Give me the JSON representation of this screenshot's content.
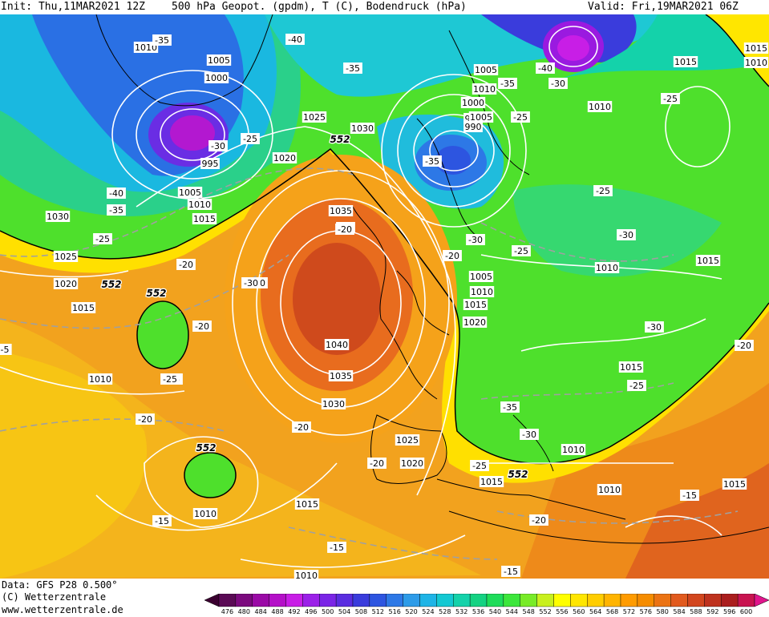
{
  "header": {
    "init": "Init: Thu,11MAR2021 12Z",
    "product": "500 hPa Geopot. (gpdm), T (C), Bodendruck (hPa)",
    "valid": "Valid: Fri,19MAR2021 06Z"
  },
  "footer": {
    "data": "Data: GFS P28 0.500°",
    "copyright": "(C) Wetterzentrale",
    "url": "www.wetterzentrale.de"
  },
  "colorbar": {
    "ticks": [
      "476",
      "480",
      "484",
      "488",
      "492",
      "496",
      "500",
      "504",
      "508",
      "512",
      "516",
      "520",
      "524",
      "528",
      "532",
      "536",
      "540",
      "544",
      "548",
      "552",
      "556",
      "560",
      "564",
      "568",
      "572",
      "576",
      "580",
      "584",
      "588",
      "592",
      "596",
      "600"
    ],
    "colors": [
      "#5a0a55",
      "#7b0a7e",
      "#9a0aa6",
      "#b410c8",
      "#c81ee6",
      "#9b20e8",
      "#7a25e6",
      "#5a2de0",
      "#3a3cdc",
      "#2d55e0",
      "#2d78e6",
      "#2d9be8",
      "#1eb4e6",
      "#14c8d2",
      "#14d2aa",
      "#14d282",
      "#1edc5a",
      "#3ce63c",
      "#78eb28",
      "#c8f01e",
      "#ffff00",
      "#ffe600",
      "#ffcd00",
      "#ffb400",
      "#ff9b00",
      "#f58c00",
      "#eb7314",
      "#e15a1e",
      "#d2461e",
      "#be321e",
      "#aa1e1e",
      "#c81450"
    ]
  },
  "map": {
    "geopot_label": "552",
    "pressure_labels": [
      "1010",
      "1005",
      "1000",
      "995",
      "1005",
      "1010",
      "1015",
      "1030",
      "1025",
      "1020",
      "1015",
      "1010",
      "1025",
      "1030",
      "1020",
      "1035",
      "1040",
      "1035",
      "1030",
      "1025",
      "1020",
      "1015",
      "1015",
      "1010",
      "1010",
      "1005",
      "1000",
      "995",
      "990",
      "1010",
      "1015",
      "1020",
      "1005",
      "1010",
      "1015",
      "1015",
      "1010",
      "1010",
      "1015",
      "1015",
      "1010",
      "1010",
      "1005",
      "1015",
      "1010"
    ],
    "temp_labels": [
      "-35",
      "-40",
      "-35",
      "-30",
      "-25",
      "-40",
      "-35",
      "-25",
      "-20",
      "-20",
      "-20",
      "-25",
      "-20",
      "-20",
      "-20",
      "-15",
      "-15",
      "-15",
      "-20",
      "-25",
      "-30",
      "-35",
      "-30",
      "-35",
      "-25",
      "-40",
      "-30",
      "-35",
      "-25",
      "-25",
      "-30",
      "-20",
      "-20",
      "-30",
      "-25",
      "-25",
      "-30",
      "-35",
      "-15",
      "-20",
      "-25",
      "-5"
    ]
  }
}
